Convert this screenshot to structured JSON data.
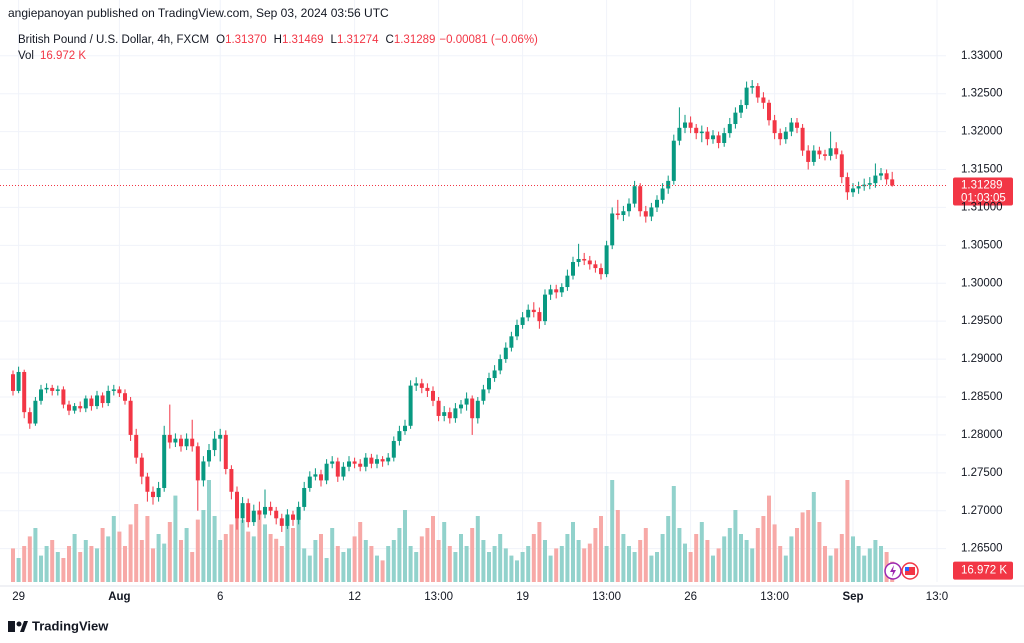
{
  "header": "angiepanoyan published on TradingView.com, Sep 03, 2024 03:56 UTC",
  "footer": "TradingView",
  "chart_data": {
    "type": "candlestick",
    "symbol": "British Pound / U.S. Dollar, 4h, FXCM",
    "legend_values": [
      {
        "key": "O",
        "value": 1.3137,
        "label": "1.31370"
      },
      {
        "key": "H",
        "value": 1.31469,
        "label": "1.31469"
      },
      {
        "key": "L",
        "value": 1.31274,
        "label": "1.31274"
      },
      {
        "key": "C",
        "value": 1.31289,
        "label": "1.31289"
      }
    ],
    "change": {
      "value": -0.00081,
      "label": "−0.00081 (−0.06%)"
    },
    "volume_title": "Vol",
    "volume_label": {
      "value": 16.972,
      "label": "16.972 K"
    },
    "last_price": {
      "value": 1.31289,
      "label": "1.31289"
    },
    "countdown": "01:03:05",
    "up_color": "#089981",
    "down_color": "#f23645",
    "volume_up_color": "#92d2cc",
    "volume_down_color": "#f7a9a7",
    "grid": true,
    "ylim": [
      1.2606,
      1.3334
    ],
    "yticks": [
      {
        "value": 1.33,
        "label": "1.33000"
      },
      {
        "value": 1.325,
        "label": "1.32500"
      },
      {
        "value": 1.32,
        "label": "1.32000"
      },
      {
        "value": 1.315,
        "label": "1.31500"
      },
      {
        "value": 1.31,
        "label": "1.31000"
      },
      {
        "value": 1.305,
        "label": "1.30500"
      },
      {
        "value": 1.3,
        "label": "1.30000"
      },
      {
        "value": 1.295,
        "label": "1.29500"
      },
      {
        "value": 1.29,
        "label": "1.29000"
      },
      {
        "value": 1.285,
        "label": "1.28500"
      },
      {
        "value": 1.28,
        "label": "1.28000"
      },
      {
        "value": 1.275,
        "label": "1.27500"
      },
      {
        "value": 1.27,
        "label": "1.27000"
      },
      {
        "value": 1.265,
        "label": "1.26500"
      }
    ],
    "volume_lim": [
      0,
      100
    ],
    "categories": [
      null,
      "29",
      null,
      null,
      null,
      null,
      null,
      null,
      null,
      null,
      null,
      null,
      null,
      null,
      null,
      null,
      null,
      null,
      null,
      "Aug",
      null,
      null,
      null,
      null,
      null,
      null,
      null,
      null,
      null,
      null,
      null,
      null,
      null,
      null,
      null,
      null,
      null,
      "6",
      null,
      null,
      null,
      null,
      null,
      null,
      null,
      null,
      null,
      null,
      null,
      null,
      null,
      null,
      null,
      null,
      null,
      null,
      null,
      null,
      null,
      null,
      null,
      "12",
      null,
      null,
      null,
      null,
      null,
      null,
      null,
      null,
      null,
      null,
      null,
      null,
      null,
      null,
      "13:00",
      null,
      null,
      null,
      null,
      null,
      null,
      null,
      null,
      null,
      null,
      null,
      null,
      null,
      null,
      "19",
      null,
      null,
      null,
      null,
      null,
      null,
      null,
      null,
      null,
      null,
      null,
      null,
      null,
      null,
      "13:00",
      null,
      null,
      null,
      null,
      null,
      null,
      null,
      null,
      null,
      null,
      null,
      null,
      null,
      null,
      "26",
      null,
      null,
      null,
      null,
      null,
      null,
      null,
      null,
      null,
      null,
      null,
      null,
      null,
      null,
      "13:00",
      null,
      null,
      null,
      null,
      null,
      null,
      null,
      null,
      null,
      null,
      null,
      null,
      null,
      "Sep",
      null,
      null,
      null,
      null,
      null,
      null,
      null,
      null,
      null,
      null,
      null,
      null,
      null,
      null,
      "13:0"
    ],
    "open": [
      1.288,
      1.2858,
      1.2883,
      1.283,
      1.2815,
      1.2845,
      1.286,
      1.2862,
      1.2858,
      1.286,
      1.284,
      1.2832,
      1.2838,
      1.2835,
      1.2848,
      1.2838,
      1.2852,
      1.2842,
      1.2858,
      1.286,
      1.2855,
      1.2845,
      1.28,
      1.277,
      1.2745,
      1.2725,
      1.2718,
      1.273,
      1.28,
      1.279,
      1.2795,
      1.2785,
      1.2795,
      1.2785,
      1.274,
      1.2765,
      1.278,
      1.2795,
      1.28,
      1.2755,
      1.2725,
      1.269,
      1.271,
      1.2685,
      1.27,
      1.2695,
      1.2705,
      1.27,
      1.269,
      1.268,
      1.2695,
      1.2688,
      1.2705,
      1.273,
      1.2745,
      1.2748,
      1.274,
      1.2762,
      1.2765,
      1.2745,
      1.2758,
      1.2765,
      1.2762,
      1.2758,
      1.277,
      1.2762,
      1.2768,
      1.2765,
      1.277,
      1.2792,
      1.2805,
      1.2812,
      1.2865,
      1.2868,
      1.2862,
      1.2858,
      1.2845,
      1.2825,
      1.283,
      1.2822,
      1.2835,
      1.284,
      1.2848,
      1.2822,
      1.2845,
      1.286,
      1.2875,
      1.2885,
      1.29,
      1.2915,
      1.293,
      1.2945,
      1.2955,
      1.2965,
      1.2962,
      1.295,
      1.2985,
      1.2992,
      1.2988,
      1.2995,
      1.301,
      1.3028,
      1.3032,
      1.303,
      1.3025,
      1.302,
      1.3012,
      1.305,
      1.3092,
      1.309,
      1.3095,
      1.3105,
      1.3128,
      1.3095,
      1.3088,
      1.31,
      1.311,
      1.3125,
      1.3135,
      1.3188,
      1.3205,
      1.3212,
      1.3205,
      1.3198,
      1.32,
      1.319,
      1.3195,
      1.3185,
      1.3198,
      1.321,
      1.3225,
      1.3235,
      1.3258,
      1.326,
      1.3245,
      1.3238,
      1.3215,
      1.3198,
      1.319,
      1.32,
      1.3212,
      1.3205,
      1.3175,
      1.316,
      1.3175,
      1.317,
      1.3168,
      1.3178,
      1.317,
      1.314,
      1.312,
      1.3125,
      1.3128,
      1.313,
      1.3132,
      1.3142,
      1.3145,
      1.3137,
      null,
      null,
      null,
      null,
      null,
      null,
      null,
      null
    ],
    "high": [
      1.2885,
      1.289,
      1.2886,
      1.2836,
      1.285,
      1.2866,
      1.2868,
      1.2866,
      1.2865,
      1.2864,
      1.2845,
      1.2842,
      1.2844,
      1.2852,
      1.2852,
      1.2858,
      1.2856,
      1.2865,
      1.2866,
      1.2864,
      1.286,
      1.285,
      1.2808,
      1.2776,
      1.275,
      1.2732,
      1.2738,
      1.2812,
      1.284,
      1.2802,
      1.28,
      1.2802,
      1.282,
      1.279,
      1.2772,
      1.2788,
      1.2805,
      1.2808,
      1.2806,
      1.276,
      1.2732,
      1.2718,
      1.2716,
      1.2708,
      1.2712,
      1.2728,
      1.2712,
      1.2705,
      1.2696,
      1.2702,
      1.27,
      1.2712,
      1.2738,
      1.2752,
      1.2756,
      1.2754,
      1.2768,
      1.2772,
      1.277,
      1.2764,
      1.2772,
      1.277,
      1.2768,
      1.2776,
      1.2775,
      1.2774,
      1.2772,
      1.2776,
      1.2798,
      1.2812,
      1.282,
      1.2872,
      1.2876,
      1.2874,
      1.2868,
      1.2864,
      1.285,
      1.2838,
      1.2836,
      1.2842,
      1.2846,
      1.2856,
      1.2852,
      1.285,
      1.2866,
      1.2882,
      1.2892,
      1.2906,
      1.2922,
      1.2936,
      1.2952,
      1.2962,
      1.2972,
      1.2975,
      1.2968,
      1.2992,
      1.2998,
      1.2998,
      1.3,
      1.3018,
      1.3035,
      1.3052,
      1.304,
      1.3036,
      1.303,
      1.3026,
      1.3056,
      1.31,
      1.311,
      1.3102,
      1.3112,
      1.3135,
      1.3132,
      1.3102,
      1.3106,
      1.3116,
      1.3132,
      1.3142,
      1.3196,
      1.3232,
      1.3222,
      1.322,
      1.321,
      1.3208,
      1.3206,
      1.3202,
      1.32,
      1.3205,
      1.3218,
      1.3232,
      1.3242,
      1.3266,
      1.3268,
      1.3264,
      1.3252,
      1.3242,
      1.3222,
      1.3204,
      1.3206,
      1.3218,
      1.3218,
      1.321,
      1.3182,
      1.3182,
      1.318,
      1.3176,
      1.32,
      1.3186,
      1.3175,
      1.3146,
      1.3132,
      1.3134,
      1.3138,
      1.314,
      1.3158,
      1.3152,
      1.315,
      1.31469,
      null,
      null,
      null,
      null,
      null,
      null,
      null,
      null
    ],
    "low": [
      1.2852,
      1.2855,
      1.2822,
      1.2808,
      1.2812,
      1.284,
      1.2855,
      1.2852,
      1.2852,
      1.2835,
      1.2826,
      1.2828,
      1.283,
      1.283,
      1.2832,
      1.2834,
      1.2836,
      1.2838,
      1.2852,
      1.285,
      1.284,
      1.2792,
      1.2762,
      1.2735,
      1.2712,
      1.2708,
      1.2712,
      1.2725,
      1.2782,
      1.2784,
      1.2778,
      1.278,
      1.2778,
      1.27,
      1.2732,
      1.2758,
      1.2772,
      1.2765,
      1.2748,
      1.2715,
      1.2675,
      1.2684,
      1.2678,
      1.268,
      1.2688,
      1.269,
      1.2694,
      1.2682,
      1.2672,
      1.2676,
      1.268,
      1.2682,
      1.27,
      1.2725,
      1.274,
      1.2732,
      1.2735,
      1.2756,
      1.2738,
      1.274,
      1.2752,
      1.2756,
      1.2752,
      1.2752,
      1.2756,
      1.2756,
      1.2758,
      1.276,
      1.2765,
      1.2786,
      1.28,
      1.2808,
      1.2858,
      1.2855,
      1.285,
      1.2838,
      1.2818,
      1.2818,
      1.2815,
      1.2816,
      1.2828,
      1.2832,
      1.28,
      1.2815,
      1.284,
      1.2855,
      1.287,
      1.288,
      1.2895,
      1.291,
      1.2925,
      1.294,
      1.295,
      1.2955,
      1.294,
      1.2945,
      1.2978,
      1.298,
      1.2982,
      1.299,
      1.3005,
      1.3022,
      1.3024,
      1.3018,
      1.3014,
      1.3005,
      1.3008,
      1.3045,
      1.3084,
      1.3082,
      1.3088,
      1.31,
      1.3088,
      1.308,
      1.3082,
      1.3094,
      1.3105,
      1.3118,
      1.313,
      1.3182,
      1.3198,
      1.3198,
      1.319,
      1.3186,
      1.3182,
      1.3184,
      1.3178,
      1.318,
      1.3192,
      1.3204,
      1.3218,
      1.323,
      1.325,
      1.3238,
      1.323,
      1.3208,
      1.319,
      1.3182,
      1.3184,
      1.3194,
      1.3198,
      1.3168,
      1.315,
      1.3155,
      1.3164,
      1.3162,
      1.3162,
      1.3164,
      1.3132,
      1.311,
      1.3114,
      1.3118,
      1.3122,
      1.3124,
      1.3126,
      1.3136,
      1.313,
      1.31274,
      null,
      null,
      null,
      null,
      null,
      null,
      null,
      null
    ],
    "close": [
      1.2858,
      1.2883,
      1.283,
      1.2815,
      1.2845,
      1.286,
      1.2862,
      1.2858,
      1.286,
      1.284,
      1.2832,
      1.2838,
      1.2835,
      1.2848,
      1.2838,
      1.2852,
      1.2842,
      1.2858,
      1.286,
      1.2855,
      1.2845,
      1.28,
      1.277,
      1.2745,
      1.2725,
      1.2718,
      1.273,
      1.28,
      1.279,
      1.2795,
      1.2785,
      1.2795,
      1.2785,
      1.274,
      1.2765,
      1.278,
      1.2795,
      1.28,
      1.2755,
      1.2725,
      1.269,
      1.271,
      1.2685,
      1.27,
      1.2695,
      1.2705,
      1.27,
      1.269,
      1.268,
      1.2695,
      1.2688,
      1.2705,
      1.273,
      1.2745,
      1.2748,
      1.274,
      1.2762,
      1.2765,
      1.2745,
      1.2758,
      1.2765,
      1.2762,
      1.2758,
      1.277,
      1.2762,
      1.2768,
      1.2765,
      1.277,
      1.2792,
      1.2805,
      1.2812,
      1.2865,
      1.2868,
      1.2862,
      1.2858,
      1.2845,
      1.2825,
      1.283,
      1.2822,
      1.2835,
      1.284,
      1.2848,
      1.2822,
      1.2845,
      1.286,
      1.2875,
      1.2885,
      1.29,
      1.2915,
      1.293,
      1.2945,
      1.2955,
      1.2965,
      1.2962,
      1.295,
      1.2985,
      1.2992,
      1.2988,
      1.2995,
      1.301,
      1.3028,
      1.3032,
      1.303,
      1.3025,
      1.302,
      1.3012,
      1.305,
      1.3092,
      1.309,
      1.3095,
      1.3105,
      1.3128,
      1.3095,
      1.3088,
      1.31,
      1.311,
      1.3125,
      1.3135,
      1.3188,
      1.3205,
      1.3212,
      1.3205,
      1.3198,
      1.32,
      1.319,
      1.3195,
      1.3185,
      1.3198,
      1.321,
      1.3225,
      1.3235,
      1.3258,
      1.326,
      1.3245,
      1.3238,
      1.3215,
      1.3198,
      1.319,
      1.32,
      1.3212,
      1.3205,
      1.3175,
      1.316,
      1.3175,
      1.317,
      1.3168,
      1.3178,
      1.317,
      1.314,
      1.312,
      1.3125,
      1.3128,
      1.313,
      1.3132,
      1.3142,
      1.3145,
      1.3137,
      1.31289,
      null,
      null,
      null,
      null,
      null,
      null,
      null,
      null
    ],
    "volume": [
      28,
      20,
      30,
      38,
      45,
      22,
      30,
      35,
      25,
      20,
      30,
      40,
      25,
      35,
      30,
      28,
      45,
      38,
      55,
      42,
      30,
      48,
      65,
      35,
      55,
      28,
      40,
      32,
      50,
      72,
      35,
      45,
      25,
      52,
      60,
      85,
      55,
      35,
      40,
      48,
      75,
      52,
      42,
      38,
      60,
      48,
      40,
      36,
      30,
      55,
      45,
      60,
      28,
      22,
      35,
      40,
      20,
      45,
      30,
      25,
      28,
      38,
      50,
      35,
      30,
      22,
      18,
      30,
      35,
      45,
      60,
      30,
      25,
      38,
      45,
      55,
      35,
      50,
      30,
      25,
      40,
      30,
      45,
      55,
      35,
      25,
      30,
      40,
      28,
      22,
      18,
      25,
      30,
      40,
      50,
      35,
      22,
      28,
      30,
      40,
      50,
      35,
      28,
      32,
      45,
      55,
      30,
      85,
      60,
      40,
      30,
      25,
      35,
      45,
      22,
      25,
      40,
      55,
      80,
      45,
      32,
      25,
      40,
      50,
      35,
      22,
      28,
      38,
      45,
      60,
      40,
      35,
      28,
      45,
      55,
      72,
      48,
      30,
      22,
      38,
      45,
      58,
      60,
      75,
      50,
      30,
      22,
      28,
      40,
      85,
      38,
      30,
      22,
      28,
      35,
      30,
      25,
      16.972,
      null,
      null,
      null,
      null,
      null,
      null,
      null,
      null
    ]
  }
}
